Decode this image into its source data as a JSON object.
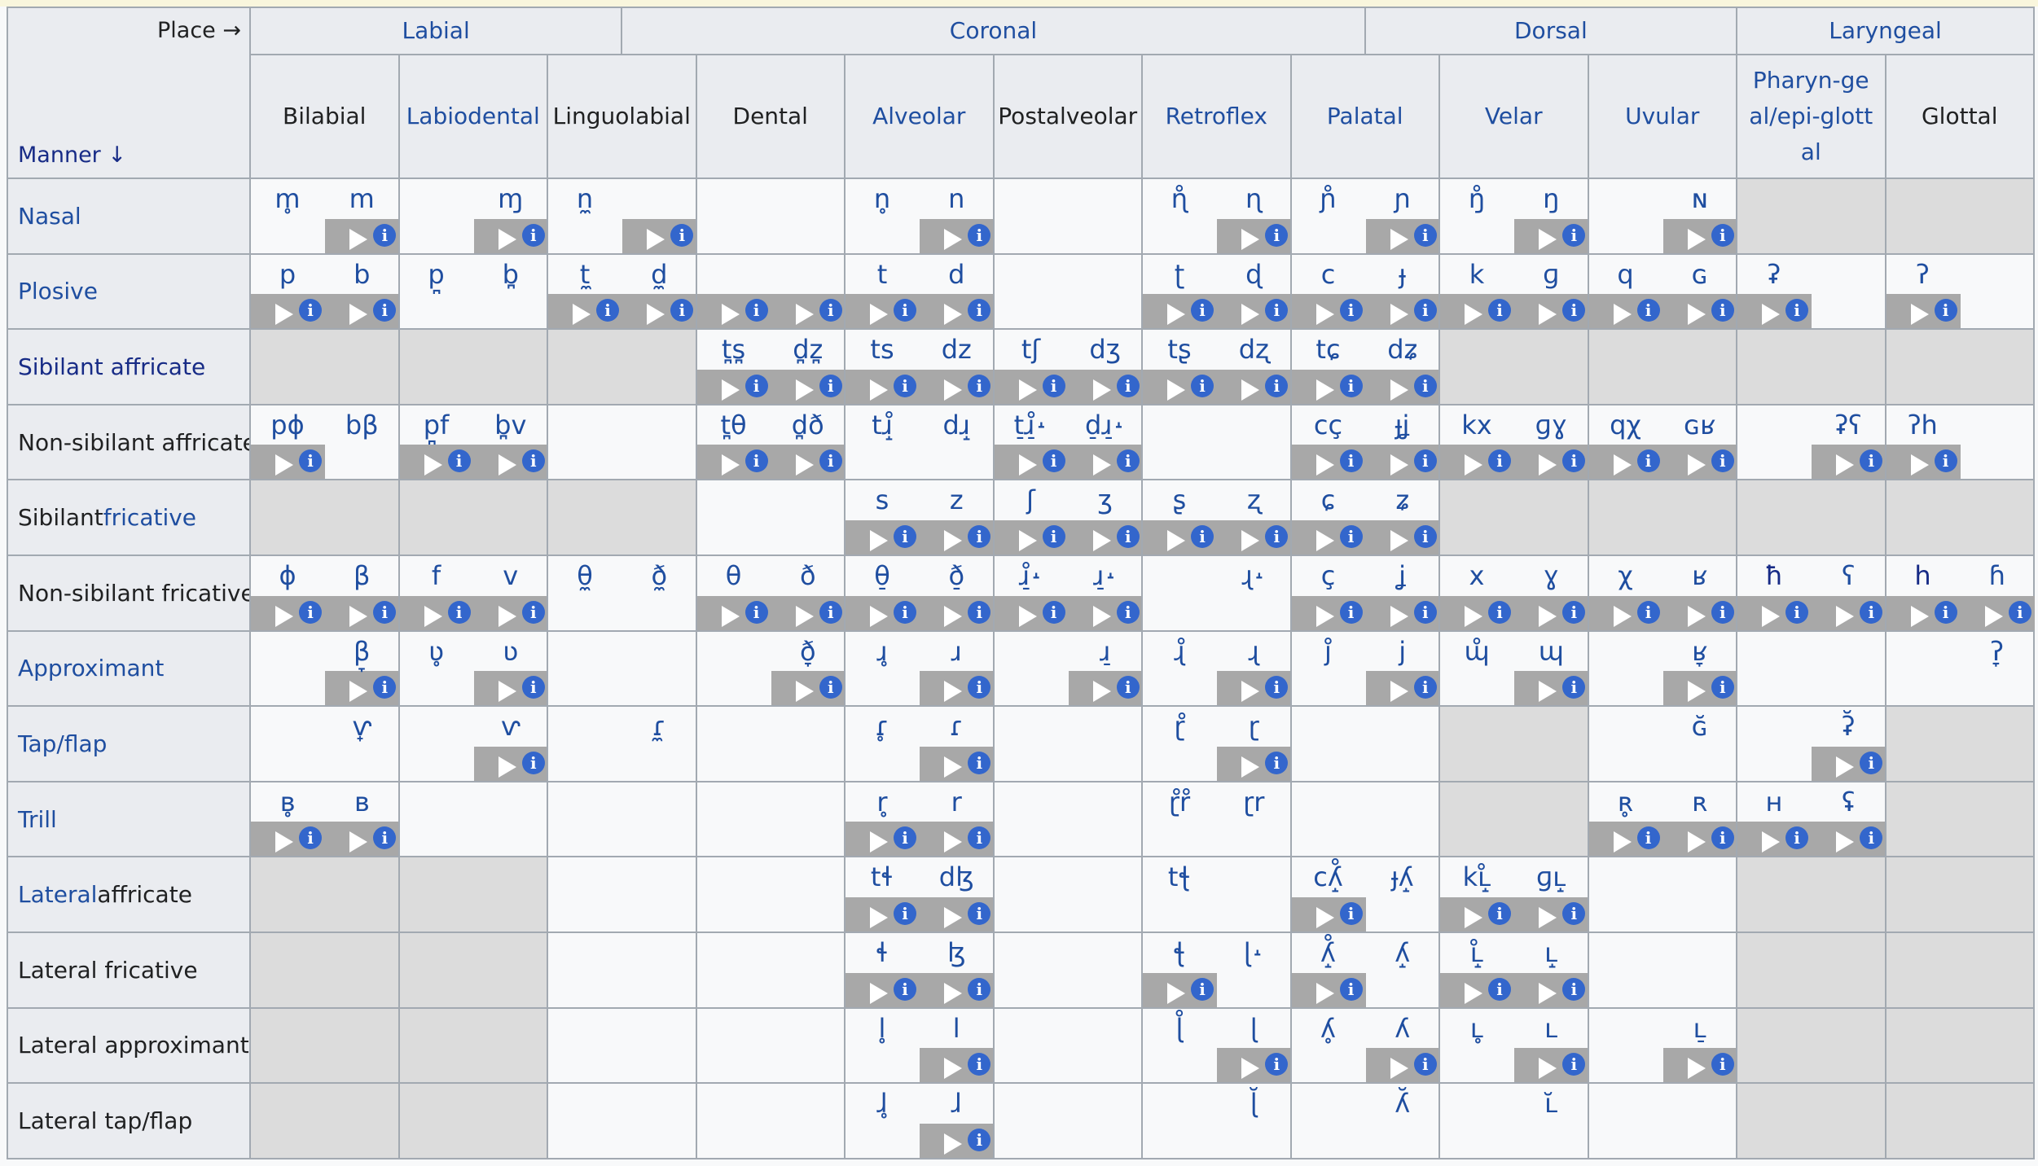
{
  "header": {
    "place_label": "Place →",
    "manner_label": "Manner ↓",
    "groups": [
      "Labial",
      "Coronal",
      "Dorsal",
      "Laryngeal"
    ],
    "columns": [
      "Bilabial",
      "Labiodental",
      "Linguolabial",
      "Dental",
      "Alveolar",
      "Postalveolar",
      "Retroflex",
      "Palatal",
      "Velar",
      "Uvular",
      "Pharyn-geal/epi-glottal",
      "Glottal"
    ]
  },
  "rows": [
    {
      "label": "Nasal"
    },
    {
      "label": "Plosive"
    },
    {
      "label": "Sibilant affricate"
    },
    {
      "label": "Non-sibilant affricate"
    },
    {
      "label": "Sibilant fricative",
      "prefix": "Sibilant ",
      "link": "fricative"
    },
    {
      "label": "Non-sibilant fricative"
    },
    {
      "label": "Approximant"
    },
    {
      "label": "Tap/flap"
    },
    {
      "label": "Trill"
    },
    {
      "label": "Lateral affricate",
      "prefix": "",
      "link": "Lateral",
      "suffix": " affricate"
    },
    {
      "label": "Lateral fricative"
    },
    {
      "label": "Lateral approximant"
    },
    {
      "label": "Lateral tap/flap"
    }
  ],
  "symbols": [
    [
      "m̥",
      "m",
      "",
      "ɱ",
      "n̼",
      "",
      "",
      "",
      "n̥",
      "n",
      "",
      "",
      "ɳ̊",
      "ɳ",
      "ɲ̊",
      "ɲ",
      "ŋ̊",
      "ŋ",
      "",
      "ɴ",
      "",
      "",
      "",
      ""
    ],
    [
      "p",
      "b",
      "p̪",
      "b̪",
      "t̼",
      "d̼",
      "",
      "",
      "t",
      "d",
      "",
      "",
      "ʈ",
      "ɖ",
      "c",
      "ɟ",
      "k",
      "ɡ",
      "q",
      "ɢ",
      "ʡ",
      "",
      "ʔ",
      ""
    ],
    [
      "",
      "",
      "",
      "",
      "",
      "",
      "t̪s̪",
      "d̪z̪",
      "ts",
      "dz",
      "tʃ",
      "dʒ",
      "tʂ",
      "dʐ",
      "tɕ",
      "dʑ",
      "",
      "",
      "",
      "",
      "",
      "",
      "",
      ""
    ],
    [
      "pɸ",
      "bβ",
      "p̪f",
      "b̪v",
      "",
      "",
      "t̪θ",
      "d̪ð",
      "tɹ̝̊",
      "dɹ̝",
      "t̠ɹ̠̊˔",
      "d̠ɹ̠˔",
      "",
      "",
      "cç",
      "ɟʝ",
      "kx",
      "ɡɣ",
      "qχ",
      "ɢʁ",
      "",
      "ʡʕ",
      "ʔh",
      ""
    ],
    [
      "",
      "",
      "",
      "",
      "",
      "",
      "",
      "",
      "s",
      "z",
      "ʃ",
      "ʒ",
      "ʂ",
      "ʐ",
      "ɕ",
      "ʑ",
      "",
      "",
      "",
      "",
      "",
      "",
      "",
      ""
    ],
    [
      "ɸ",
      "β",
      "f",
      "v",
      "θ̼",
      "ð̼",
      "θ",
      "ð",
      "θ̠",
      "ð̠",
      "ɹ̠̊˔",
      "ɹ̠˔",
      "",
      "ɻ˔",
      "ç",
      "ʝ",
      "x",
      "ɣ",
      "χ",
      "ʁ",
      "ħ",
      "ʕ",
      "h",
      "ɦ"
    ],
    [
      "",
      "β̞",
      "ʋ̥",
      "ʋ",
      "",
      "",
      "",
      "ð̞",
      "ɹ̥",
      "ɹ",
      "",
      "ɹ̠",
      "ɻ̊",
      "ɻ",
      "ȷ̊",
      "j",
      "ɰ̊",
      "ɰ",
      "",
      "ʁ̞",
      "",
      "",
      "",
      "ʔ̞"
    ],
    [
      "",
      "ⱱ̟",
      "",
      "ⱱ",
      "",
      "ɾ̼",
      "",
      "",
      "ɾ̥",
      "ɾ",
      "",
      "",
      "ɽ̊",
      "ɽ",
      "",
      "",
      "",
      "",
      "",
      "ɢ̆",
      "",
      "ʡ̆",
      "",
      ""
    ],
    [
      "ʙ̥",
      "ʙ",
      "",
      "",
      "",
      "",
      "",
      "",
      "r̥",
      "r",
      "",
      "",
      "ɽ̊r̊",
      "ɽr",
      "",
      "",
      "",
      "",
      "ʀ̥",
      "ʀ",
      "ʜ",
      "ʢ",
      "",
      ""
    ],
    [
      "",
      "",
      "",
      "",
      "",
      "",
      "",
      "",
      "tɬ",
      "dɮ",
      "",
      "",
      "tꞎ",
      "",
      "cʎ̝̊",
      "ɟʎ̝",
      "kʟ̝̊",
      "ɡʟ̝",
      "",
      "",
      "",
      "",
      "",
      ""
    ],
    [
      "",
      "",
      "",
      "",
      "",
      "",
      "",
      "",
      "ɬ",
      "ɮ",
      "",
      "",
      "ꞎ",
      "ɭ˔",
      "ʎ̝̊",
      "ʎ̝",
      "ʟ̝̊",
      "ʟ̝",
      "",
      "",
      "",
      "",
      "",
      ""
    ],
    [
      "",
      "",
      "",
      "",
      "",
      "",
      "",
      "",
      "l̥",
      "l",
      "",
      "",
      "ɭ̊",
      "ɭ",
      "ʎ̥",
      "ʎ",
      "ʟ̥",
      "ʟ",
      "",
      "ʟ̠",
      "",
      "",
      "",
      ""
    ],
    [
      "",
      "",
      "",
      "",
      "",
      "",
      "",
      "",
      "ɺ̥",
      "ɺ",
      "",
      "",
      "",
      "ɭ̆",
      "",
      "ʎ̆",
      "",
      "ʟ̆",
      "",
      "",
      "",
      "",
      "",
      ""
    ]
  ],
  "audio": [
    [
      0,
      1,
      0,
      1,
      0,
      1,
      0,
      0,
      0,
      1,
      0,
      0,
      0,
      1,
      0,
      1,
      0,
      1,
      0,
      1,
      0,
      0,
      0,
      0
    ],
    [
      1,
      1,
      0,
      0,
      1,
      1,
      1,
      1,
      1,
      1,
      0,
      0,
      1,
      1,
      1,
      1,
      1,
      1,
      1,
      1,
      1,
      0,
      1,
      0
    ],
    [
      0,
      0,
      0,
      0,
      0,
      0,
      1,
      1,
      1,
      1,
      1,
      1,
      1,
      1,
      1,
      1,
      0,
      0,
      0,
      0,
      0,
      0,
      0,
      0
    ],
    [
      1,
      0,
      1,
      1,
      0,
      0,
      1,
      1,
      0,
      0,
      1,
      1,
      0,
      0,
      1,
      1,
      1,
      1,
      1,
      1,
      0,
      1,
      1,
      0
    ],
    [
      0,
      0,
      0,
      0,
      0,
      0,
      0,
      0,
      1,
      1,
      1,
      1,
      1,
      1,
      1,
      1,
      0,
      0,
      0,
      0,
      0,
      0,
      0,
      0
    ],
    [
      1,
      1,
      1,
      1,
      0,
      0,
      1,
      1,
      1,
      1,
      1,
      1,
      0,
      0,
      1,
      1,
      1,
      1,
      1,
      1,
      1,
      1,
      1,
      1
    ],
    [
      0,
      1,
      0,
      1,
      0,
      0,
      0,
      1,
      0,
      1,
      0,
      1,
      0,
      1,
      0,
      1,
      0,
      1,
      0,
      1,
      0,
      0,
      0,
      0
    ],
    [
      0,
      0,
      0,
      1,
      0,
      0,
      0,
      0,
      0,
      1,
      0,
      0,
      0,
      1,
      0,
      0,
      0,
      0,
      0,
      0,
      0,
      1,
      0,
      0
    ],
    [
      1,
      1,
      0,
      0,
      0,
      0,
      0,
      0,
      1,
      1,
      0,
      0,
      0,
      0,
      0,
      0,
      0,
      0,
      1,
      1,
      1,
      1,
      0,
      0
    ],
    [
      0,
      0,
      0,
      0,
      0,
      0,
      0,
      0,
      1,
      1,
      0,
      0,
      0,
      0,
      1,
      0,
      1,
      1,
      0,
      0,
      0,
      0,
      0,
      0
    ],
    [
      0,
      0,
      0,
      0,
      0,
      0,
      0,
      0,
      1,
      1,
      0,
      0,
      1,
      0,
      1,
      0,
      1,
      1,
      0,
      0,
      0,
      0,
      0,
      0
    ],
    [
      0,
      0,
      0,
      0,
      0,
      0,
      0,
      0,
      0,
      1,
      0,
      0,
      0,
      1,
      0,
      1,
      0,
      1,
      0,
      1,
      0,
      0,
      0,
      0
    ],
    [
      0,
      0,
      0,
      0,
      0,
      0,
      0,
      0,
      0,
      1,
      0,
      0,
      0,
      0,
      0,
      0,
      0,
      0,
      0,
      0,
      0,
      0,
      0,
      0
    ]
  ],
  "grey_cells": [
    [
      0,
      10
    ],
    [
      0,
      11
    ],
    [
      2,
      0
    ],
    [
      2,
      1
    ],
    [
      2,
      2
    ],
    [
      2,
      8
    ],
    [
      2,
      9
    ],
    [
      2,
      10
    ],
    [
      2,
      11
    ],
    [
      4,
      0
    ],
    [
      4,
      1
    ],
    [
      4,
      2
    ],
    [
      4,
      8
    ],
    [
      4,
      9
    ],
    [
      4,
      10
    ],
    [
      4,
      11
    ],
    [
      7,
      8
    ],
    [
      7,
      11
    ],
    [
      8,
      8
    ],
    [
      8,
      11
    ],
    [
      9,
      0
    ],
    [
      9,
      1
    ],
    [
      9,
      10
    ],
    [
      9,
      11
    ],
    [
      10,
      0
    ],
    [
      10,
      1
    ],
    [
      10,
      10
    ],
    [
      10,
      11
    ],
    [
      11,
      0
    ],
    [
      11,
      1
    ],
    [
      11,
      10
    ],
    [
      11,
      11
    ],
    [
      12,
      0
    ],
    [
      12,
      1
    ],
    [
      12,
      10
    ],
    [
      12,
      11
    ]
  ],
  "colors": {
    "link": "#1f4ea0",
    "visited": "#172b86",
    "text": "#202122",
    "audio_bar": "#a8a8a8",
    "info_icon": "#3366cc",
    "grey_cell": "#dcdcdc"
  },
  "icons": {
    "play": "play-icon",
    "info": "info-icon"
  }
}
